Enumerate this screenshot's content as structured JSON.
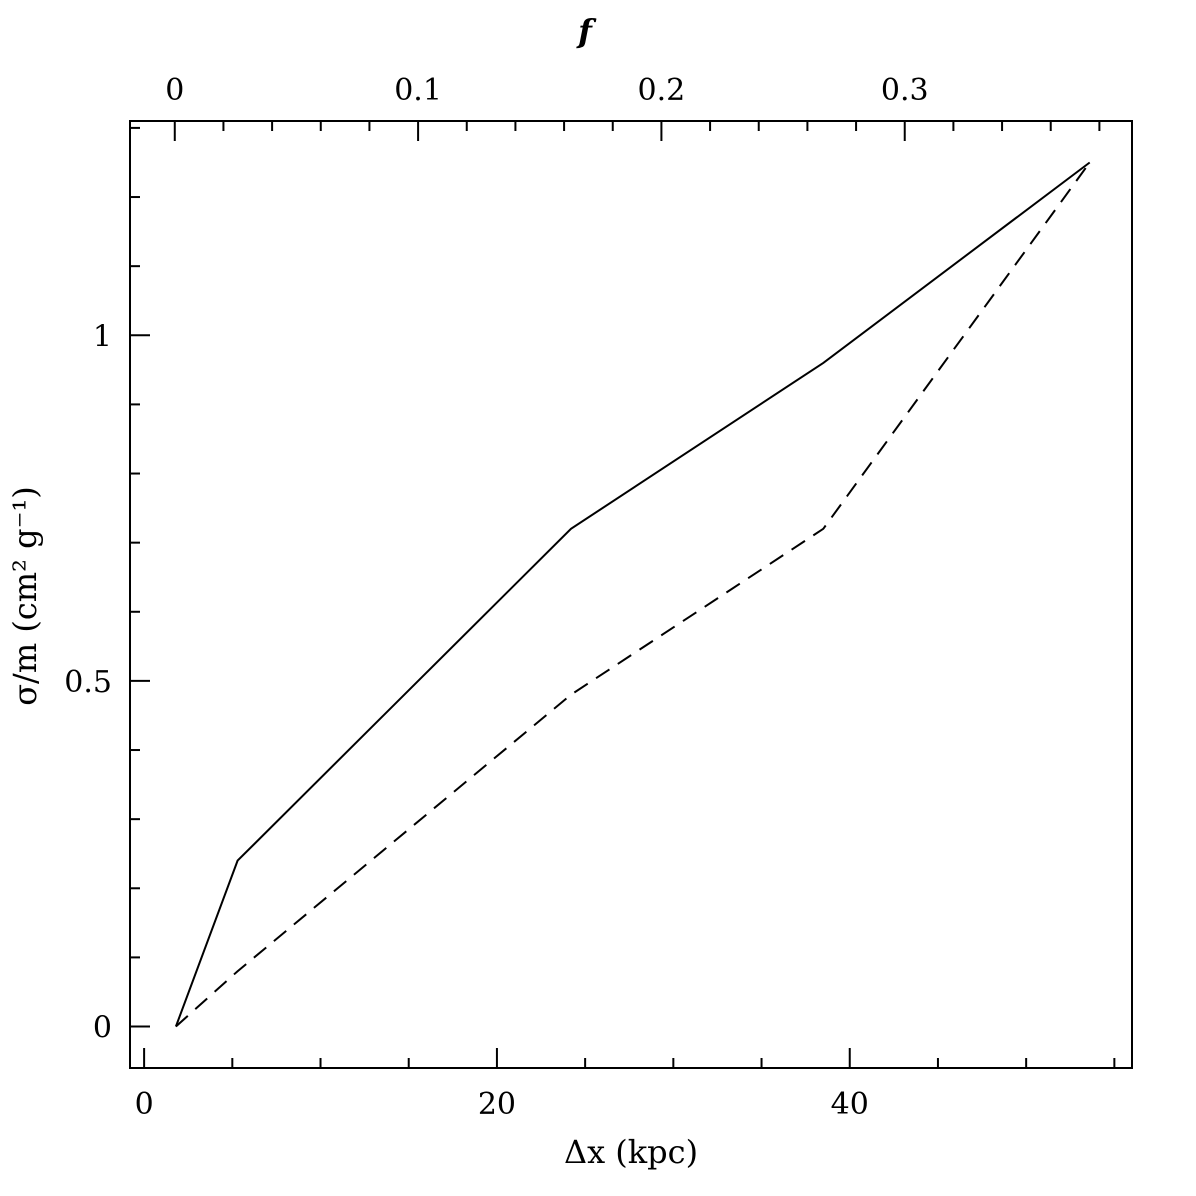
{
  "chart_data": {
    "type": "line",
    "bottom_axis": {
      "label": "Δx (kpc)",
      "range": [
        -0.8,
        56
      ],
      "major_ticks": [
        0,
        20,
        40
      ],
      "minor_step": 5
    },
    "top_axis": {
      "label": "f",
      "range": [
        -0.0184,
        0.3934
      ],
      "major_ticks": [
        0,
        0.1,
        0.2,
        0.3
      ],
      "major_tick_labels": [
        "0",
        "0.1",
        "0.2",
        "0.3"
      ],
      "minor_step": 0.02
    },
    "left_axis": {
      "label": "σ/m (cm² g⁻¹)",
      "range": [
        -0.06,
        1.31
      ],
      "major_ticks": [
        0,
        0.5,
        1
      ],
      "major_tick_labels": [
        "0",
        "0.5",
        "1"
      ],
      "minor_step": 0.1
    },
    "series": [
      {
        "line_style": "solid",
        "x": [
          1.8,
          5.3,
          24.2,
          38.5,
          53.6
        ],
        "y": [
          0.0,
          0.24,
          0.72,
          0.96,
          1.25
        ]
      },
      {
        "line_style": "dashed",
        "x": [
          1.8,
          5.3,
          24.2,
          38.5,
          53.6
        ],
        "y": [
          0.0,
          0.08,
          0.48,
          0.72,
          1.25
        ]
      }
    ],
    "grid": false,
    "legend": "none"
  }
}
